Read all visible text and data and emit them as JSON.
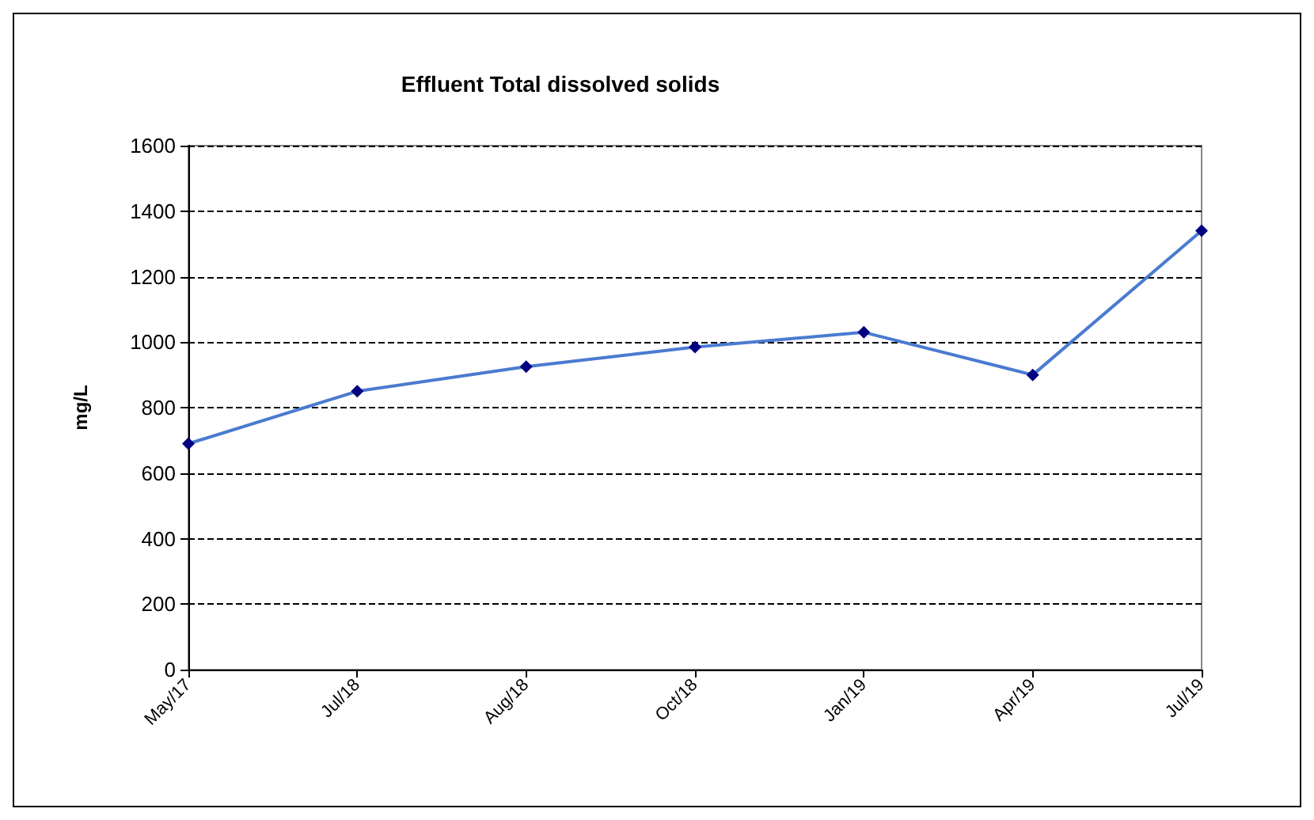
{
  "chart_data": {
    "type": "line",
    "title": "Effluent Total dissolved solids",
    "ylabel": "mg/L",
    "categories": [
      "May/17",
      "Jul/18",
      "Aug/18",
      "Oct/18",
      "Jan/19",
      "Apr/19",
      "Jul/19"
    ],
    "series": [
      {
        "color": "#4a7bd0",
        "values": [
          690,
          850,
          925,
          985,
          1030,
          900,
          1340
        ]
      }
    ],
    "ylim": [
      0,
      1600
    ],
    "yticks": [
      0,
      200,
      400,
      600,
      800,
      1000,
      1200,
      1400,
      1600
    ],
    "grid": "y",
    "marker": "diamond",
    "line_style": "solid"
  }
}
